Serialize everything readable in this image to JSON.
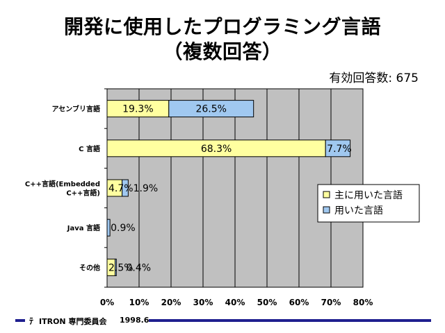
{
  "header": {
    "title_line1": "開発に使用したプログラミング言語",
    "title_line2": "（複数回答）",
    "responses": "有効回答数: 675"
  },
  "footer": {
    "logo": "ﾃ",
    "org": "ITRON 専門委員会",
    "date": "1998.6"
  },
  "colors": {
    "primary_fill": "#ffffa0",
    "secondary_fill": "#a0c8f0",
    "plot_bg": "#c0c0c0",
    "footer_bar": "#1f1f8f"
  },
  "chart_data": {
    "type": "bar",
    "orientation": "horizontal",
    "stacked": true,
    "title": "開発に使用したプログラミング言語（複数回答）",
    "categories": [
      [
        "アセンブリ言語"
      ],
      [
        "C 言語"
      ],
      [
        "C++言語(Embedded",
        "C++言語)"
      ],
      [
        "Java 言語"
      ],
      [
        "その他"
      ]
    ],
    "series": [
      {
        "name": "主に用いた言語",
        "values": [
          19.3,
          68.3,
          4.7,
          0.0,
          2.5
        ]
      },
      {
        "name": "用いた言語",
        "values": [
          26.5,
          7.7,
          1.9,
          0.9,
          0.4
        ]
      }
    ],
    "value_labels": [
      [
        "19.3%",
        "26.5%"
      ],
      [
        "68.3%",
        "7.7%"
      ],
      [
        "4.7%",
        "1.9%"
      ],
      [
        "",
        "0.9%"
      ],
      [
        "2.5%",
        "0.4%"
      ]
    ],
    "xlim": [
      0,
      80
    ],
    "xticks": [
      "0%",
      "10%",
      "20%",
      "30%",
      "40%",
      "50%",
      "60%",
      "70%",
      "80%"
    ],
    "grid": true,
    "legend_position": "right"
  }
}
